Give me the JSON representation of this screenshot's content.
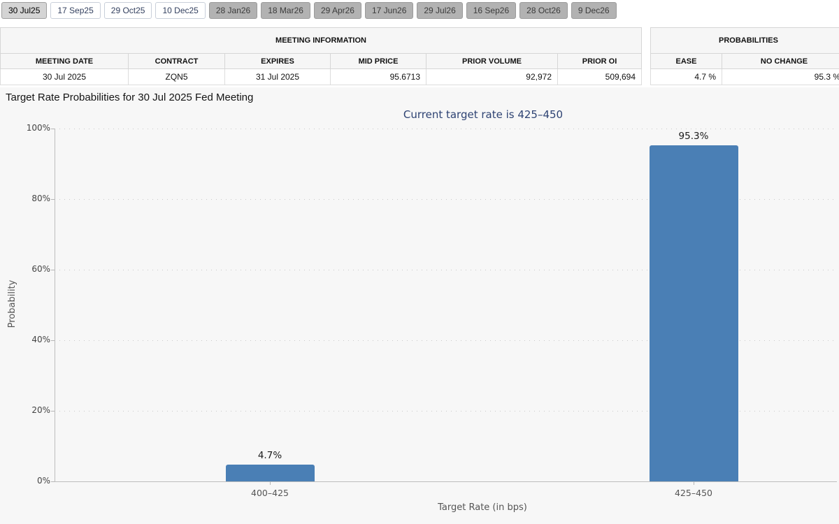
{
  "tabs": [
    {
      "label": "30 Jul25",
      "state": "selected"
    },
    {
      "label": "17 Sep25",
      "state": "open"
    },
    {
      "label": "29 Oct25",
      "state": "open"
    },
    {
      "label": "10 Dec25",
      "state": "open"
    },
    {
      "label": "28 Jan26",
      "state": "muted"
    },
    {
      "label": "18 Mar26",
      "state": "muted"
    },
    {
      "label": "29 Apr26",
      "state": "muted"
    },
    {
      "label": "17 Jun26",
      "state": "muted"
    },
    {
      "label": "29 Jul26",
      "state": "muted"
    },
    {
      "label": "16 Sep26",
      "state": "muted"
    },
    {
      "label": "28 Oct26",
      "state": "muted"
    },
    {
      "label": "9 Dec26",
      "state": "muted"
    }
  ],
  "meeting_info": {
    "title": "MEETING INFORMATION",
    "columns": [
      "MEETING DATE",
      "CONTRACT",
      "EXPIRES",
      "MID PRICE",
      "PRIOR VOLUME",
      "PRIOR OI"
    ],
    "row": {
      "meeting_date": "30 Jul 2025",
      "contract": "ZQN5",
      "expires": "31 Jul 2025",
      "mid_price": "95.6713",
      "prior_volume": "92,972",
      "prior_oi": "509,694"
    }
  },
  "probabilities": {
    "title": "PROBABILITIES",
    "columns": [
      "EASE",
      "NO CHANGE"
    ],
    "row": {
      "ease": "4.7 %",
      "no_change": "95.3 %"
    }
  },
  "colors": {
    "bar": "#4a7fb5",
    "subtitle_text": "#2e4373",
    "chart_background": "#f7f7f7"
  },
  "chart_data": {
    "type": "bar",
    "title": "Target Rate Probabilities for 30 Jul 2025 Fed Meeting",
    "subtitle": "Current target rate is 425–450",
    "categories": [
      "400–425",
      "425–450"
    ],
    "values": [
      4.7,
      95.3
    ],
    "value_labels": [
      "4.7%",
      "95.3%"
    ],
    "xlabel": "Target Rate (in bps)",
    "ylabel": "Probability",
    "ylim": [
      0,
      100
    ],
    "yticks": [
      0,
      20,
      40,
      60,
      80,
      100
    ],
    "ytick_labels": [
      "0%",
      "20%",
      "40%",
      "60%",
      "80%",
      "100%"
    ],
    "grid": "dotted horizontal",
    "legend": "none",
    "bar_color": "#4a7fb5"
  }
}
